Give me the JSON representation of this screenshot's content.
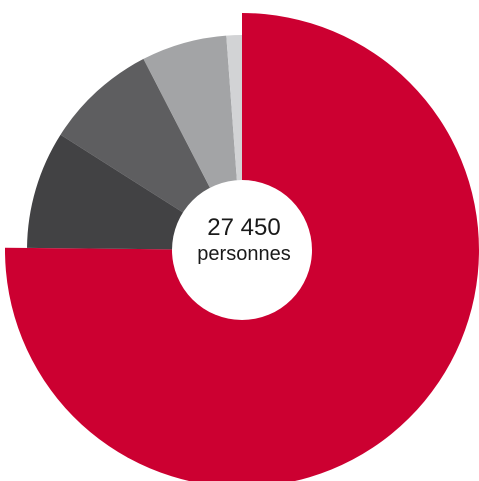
{
  "chart_data": {
    "type": "pie",
    "style": "donut",
    "center_value": "27 450",
    "center_unit": "personnes",
    "slices": [
      {
        "value": 20630,
        "color": "#cc0031",
        "emphasis": "exploded"
      },
      {
        "value": 2430,
        "color": "#424244"
      },
      {
        "value": 2310,
        "color": "#5e5e60"
      },
      {
        "value": 1760,
        "color": "#a3a4a6"
      },
      {
        "value": 320,
        "color": "#d2d3d5"
      }
    ]
  }
}
